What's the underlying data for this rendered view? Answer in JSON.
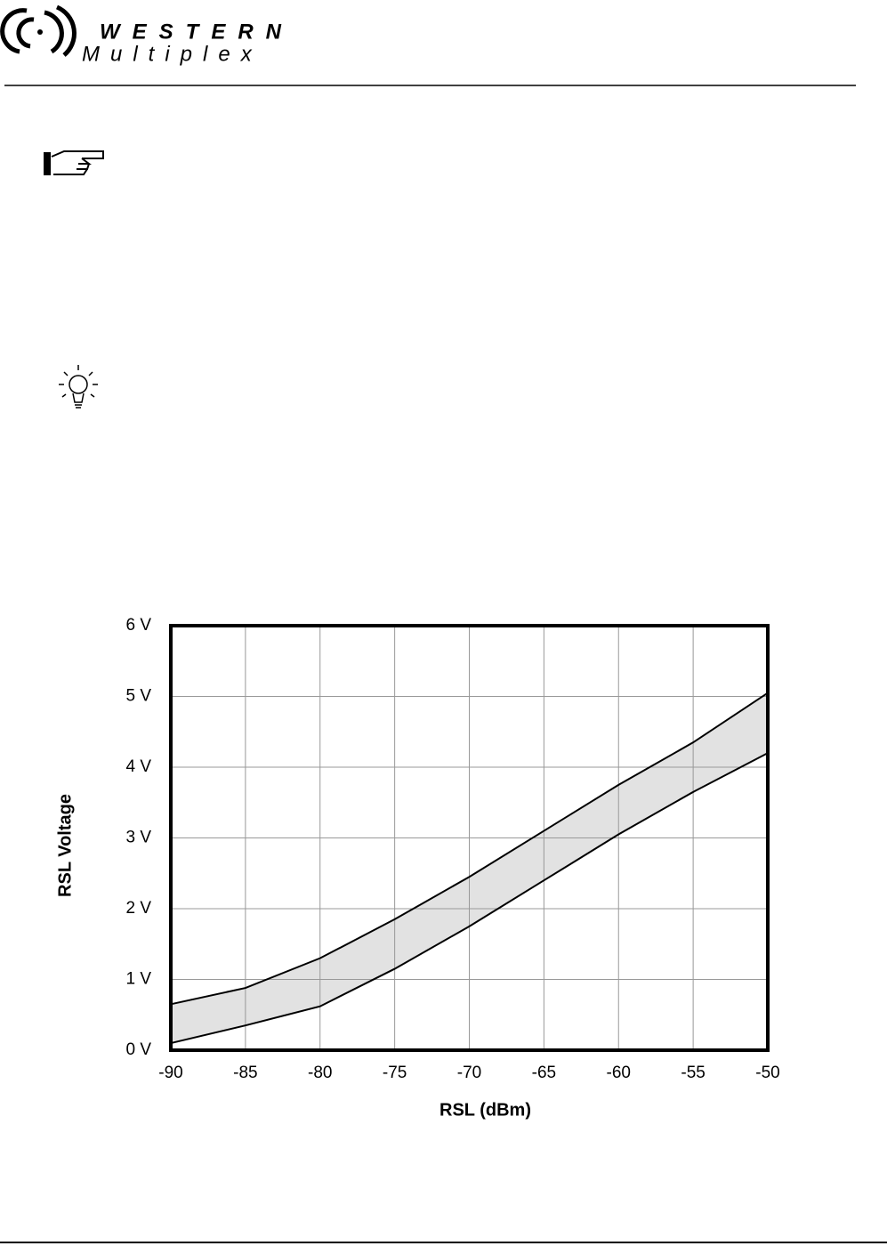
{
  "header": {
    "brand": "WESTERN",
    "subbrand": "Multiplex"
  },
  "chart_data": {
    "type": "line",
    "xlabel": "RSL  (dBm)",
    "ylabel": "RSL Voltage",
    "x": [
      -90,
      -85,
      -80,
      -75,
      -70,
      -65,
      -60,
      -55,
      -50
    ],
    "series": [
      {
        "color": "#000000",
        "values": [
          0.65,
          0.88,
          1.3,
          1.85,
          2.45,
          3.1,
          3.75,
          4.35,
          5.05
        ]
      },
      {
        "color": "#000000",
        "values": [
          0.1,
          0.35,
          0.62,
          1.15,
          1.75,
          2.4,
          3.05,
          3.65,
          4.2
        ]
      }
    ],
    "band_color": "#e2e2e2",
    "xlim": [
      -90,
      -50
    ],
    "xticks": [
      -90,
      -85,
      -80,
      -75,
      -70,
      -65,
      -60,
      -55,
      -50
    ],
    "ylim": [
      0,
      6
    ],
    "yticks": [
      {
        "value": 0,
        "label": "0 V"
      },
      {
        "value": 1,
        "label": "1 V"
      },
      {
        "value": 2,
        "label": "2 V"
      },
      {
        "value": 3,
        "label": "3 V"
      },
      {
        "value": 4,
        "label": "4 V"
      },
      {
        "value": 5,
        "label": "5 V"
      },
      {
        "value": 6,
        "label": "6 V"
      }
    ],
    "grid": true
  }
}
